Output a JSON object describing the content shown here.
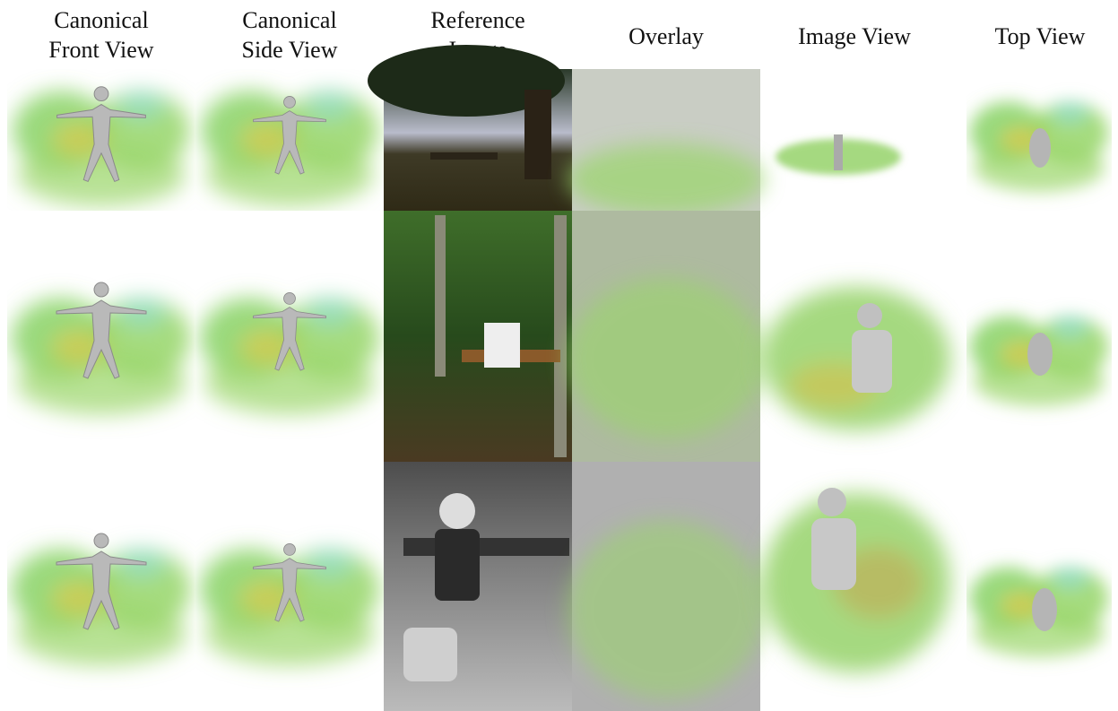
{
  "header": {
    "columns": [
      [
        "Canonical",
        "Front View"
      ],
      [
        "Canonical",
        "Side View"
      ],
      [
        "Reference",
        "Image"
      ],
      [
        "Overlay"
      ],
      [
        "Image View"
      ],
      [
        "Top View"
      ]
    ]
  }
}
